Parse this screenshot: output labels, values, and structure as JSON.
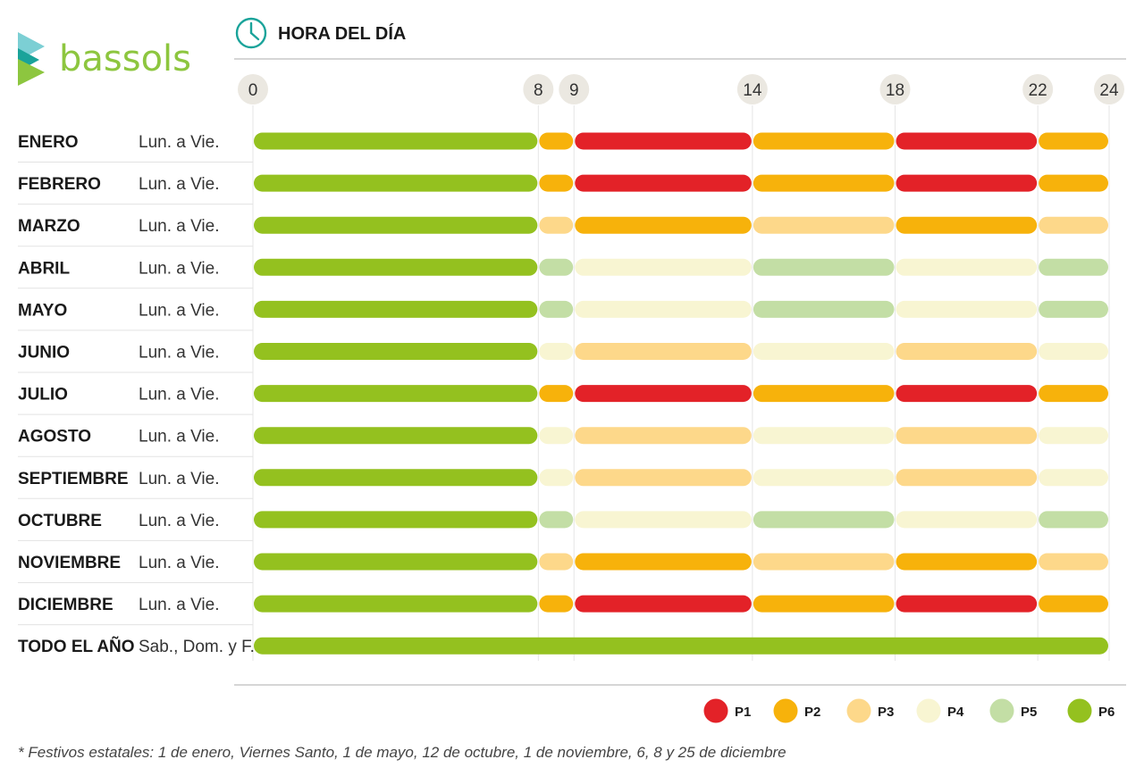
{
  "brand": {
    "name": "bassols",
    "color": "#8dc63f"
  },
  "header": {
    "title": "HORA DEL DÍA",
    "icon": "clock-icon",
    "icon_color": "#1aa39a"
  },
  "chart_data": {
    "type": "timeline",
    "xlabel": "HORA DEL DÍA",
    "x_ticks": [
      0,
      8,
      9,
      14,
      18,
      22,
      24
    ],
    "xlim": [
      0,
      24
    ],
    "periods": {
      "P1": "#e32228",
      "P2": "#f7b20b",
      "P3": "#fdd88a",
      "P4": "#f8f5d2",
      "P5": "#c3dea5",
      "P6": "#94c11f"
    },
    "legend": [
      "P1",
      "P2",
      "P3",
      "P4",
      "P5",
      "P6"
    ],
    "legend_position": "bottom-right",
    "rows": [
      {
        "month": "ENERO",
        "days": "Lun. a Vie.",
        "segments": [
          [
            0,
            8,
            "P6"
          ],
          [
            8,
            9,
            "P2"
          ],
          [
            9,
            14,
            "P1"
          ],
          [
            14,
            18,
            "P2"
          ],
          [
            18,
            22,
            "P1"
          ],
          [
            22,
            24,
            "P2"
          ]
        ]
      },
      {
        "month": "FEBRERO",
        "days": "Lun. a Vie.",
        "segments": [
          [
            0,
            8,
            "P6"
          ],
          [
            8,
            9,
            "P2"
          ],
          [
            9,
            14,
            "P1"
          ],
          [
            14,
            18,
            "P2"
          ],
          [
            18,
            22,
            "P1"
          ],
          [
            22,
            24,
            "P2"
          ]
        ]
      },
      {
        "month": "MARZO",
        "days": "Lun. a Vie.",
        "segments": [
          [
            0,
            8,
            "P6"
          ],
          [
            8,
            9,
            "P3"
          ],
          [
            9,
            14,
            "P2"
          ],
          [
            14,
            18,
            "P3"
          ],
          [
            18,
            22,
            "P2"
          ],
          [
            22,
            24,
            "P3"
          ]
        ]
      },
      {
        "month": "ABRIL",
        "days": "Lun. a Vie.",
        "segments": [
          [
            0,
            8,
            "P6"
          ],
          [
            8,
            9,
            "P5"
          ],
          [
            9,
            14,
            "P4"
          ],
          [
            14,
            18,
            "P5"
          ],
          [
            18,
            22,
            "P4"
          ],
          [
            22,
            24,
            "P5"
          ]
        ]
      },
      {
        "month": "MAYO",
        "days": "Lun. a Vie.",
        "segments": [
          [
            0,
            8,
            "P6"
          ],
          [
            8,
            9,
            "P5"
          ],
          [
            9,
            14,
            "P4"
          ],
          [
            14,
            18,
            "P5"
          ],
          [
            18,
            22,
            "P4"
          ],
          [
            22,
            24,
            "P5"
          ]
        ]
      },
      {
        "month": "JUNIO",
        "days": "Lun. a Vie.",
        "segments": [
          [
            0,
            8,
            "P6"
          ],
          [
            8,
            9,
            "P4"
          ],
          [
            9,
            14,
            "P3"
          ],
          [
            14,
            18,
            "P4"
          ],
          [
            18,
            22,
            "P3"
          ],
          [
            22,
            24,
            "P4"
          ]
        ]
      },
      {
        "month": "JULIO",
        "days": "Lun. a Vie.",
        "segments": [
          [
            0,
            8,
            "P6"
          ],
          [
            8,
            9,
            "P2"
          ],
          [
            9,
            14,
            "P1"
          ],
          [
            14,
            18,
            "P2"
          ],
          [
            18,
            22,
            "P1"
          ],
          [
            22,
            24,
            "P2"
          ]
        ]
      },
      {
        "month": "AGOSTO",
        "days": "Lun. a Vie.",
        "segments": [
          [
            0,
            8,
            "P6"
          ],
          [
            8,
            9,
            "P4"
          ],
          [
            9,
            14,
            "P3"
          ],
          [
            14,
            18,
            "P4"
          ],
          [
            18,
            22,
            "P3"
          ],
          [
            22,
            24,
            "P4"
          ]
        ]
      },
      {
        "month": "SEPTIEMBRE",
        "days": "Lun. a Vie.",
        "segments": [
          [
            0,
            8,
            "P6"
          ],
          [
            8,
            9,
            "P4"
          ],
          [
            9,
            14,
            "P3"
          ],
          [
            14,
            18,
            "P4"
          ],
          [
            18,
            22,
            "P3"
          ],
          [
            22,
            24,
            "P4"
          ]
        ]
      },
      {
        "month": "OCTUBRE",
        "days": "Lun. a Vie.",
        "segments": [
          [
            0,
            8,
            "P6"
          ],
          [
            8,
            9,
            "P5"
          ],
          [
            9,
            14,
            "P4"
          ],
          [
            14,
            18,
            "P5"
          ],
          [
            18,
            22,
            "P4"
          ],
          [
            22,
            24,
            "P5"
          ]
        ]
      },
      {
        "month": "NOVIEMBRE",
        "days": "Lun. a Vie.",
        "segments": [
          [
            0,
            8,
            "P6"
          ],
          [
            8,
            9,
            "P3"
          ],
          [
            9,
            14,
            "P2"
          ],
          [
            14,
            18,
            "P3"
          ],
          [
            18,
            22,
            "P2"
          ],
          [
            22,
            24,
            "P3"
          ]
        ]
      },
      {
        "month": "DICIEMBRE",
        "days": "Lun. a Vie.",
        "segments": [
          [
            0,
            8,
            "P6"
          ],
          [
            8,
            9,
            "P2"
          ],
          [
            9,
            14,
            "P1"
          ],
          [
            14,
            18,
            "P2"
          ],
          [
            18,
            22,
            "P1"
          ],
          [
            22,
            24,
            "P2"
          ]
        ]
      },
      {
        "month": "TODO EL AÑO",
        "days": "Sab., Dom. y F.",
        "segments": [
          [
            0,
            24,
            "P6"
          ]
        ]
      }
    ]
  },
  "footnote": "* Festivos estatales: 1 de enero, Viernes Santo, 1 de mayo, 12 de octubre, 1 de noviembre, 6, 8 y 25 de diciembre"
}
